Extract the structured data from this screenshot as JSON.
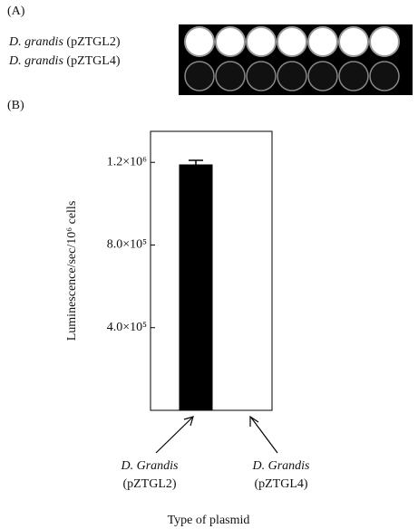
{
  "panel_a": {
    "label": "(A)",
    "rows": [
      {
        "species": "D. grandis",
        "plasmid": "(pZTGL2)"
      },
      {
        "species": "D. grandis",
        "plasmid": "(pZTGL4)"
      }
    ]
  },
  "chart_data": {
    "type": "bar",
    "panel_label": "(B)",
    "categories": [
      "D. Grandis (pZTGL2)",
      "D. Grandis (pZTGL4)"
    ],
    "values": [
      1190000,
      0
    ],
    "errors": [
      20000,
      0
    ],
    "color": "#000000",
    "ylabel": "Luminescence/sec/10⁶ cells",
    "xlabel": "Type of plasmid",
    "ylim": [
      0,
      1350000
    ],
    "yticks": [
      {
        "value": 400000,
        "label": "4.0×10⁵"
      },
      {
        "value": 800000,
        "label": "8.0×10⁵"
      },
      {
        "value": 1200000,
        "label": "1.2×10⁶"
      }
    ]
  }
}
